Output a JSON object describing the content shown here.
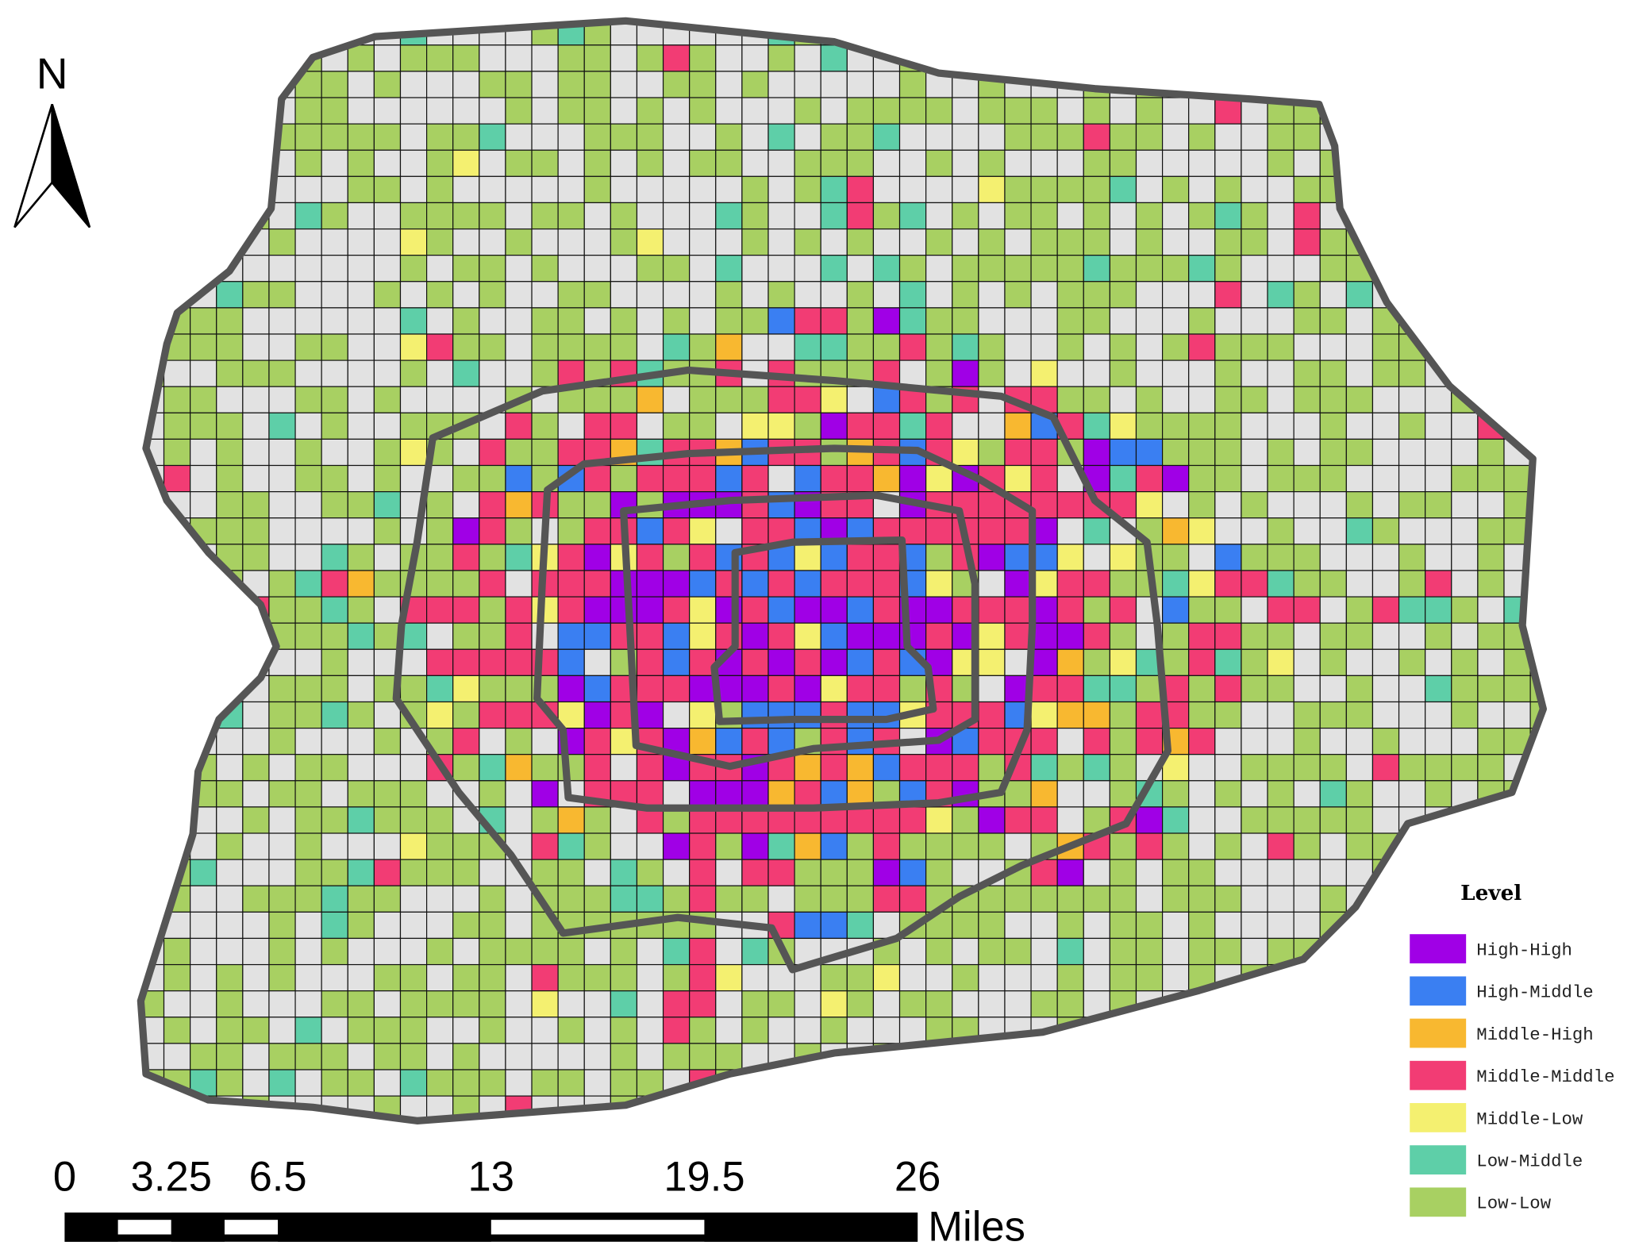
{
  "north_label": "N",
  "legend": {
    "title": "Level",
    "items": [
      {
        "label": "High-High",
        "color": "#a000e6"
      },
      {
        "label": "High-Middle",
        "color": "#3a7ff2"
      },
      {
        "label": "Middle-High",
        "color": "#f8b830"
      },
      {
        "label": "Middle-Middle",
        "color": "#f23c74"
      },
      {
        "label": "Middle-Low",
        "color": "#f4f070"
      },
      {
        "label": "Low-Middle",
        "color": "#5ecfa8"
      },
      {
        "label": "Low-Low",
        "color": "#a8d062"
      }
    ]
  },
  "scale_bar": {
    "ticks": [
      0,
      3.25,
      6.5,
      13,
      19.5,
      26
    ],
    "unit": "Miles"
  }
}
